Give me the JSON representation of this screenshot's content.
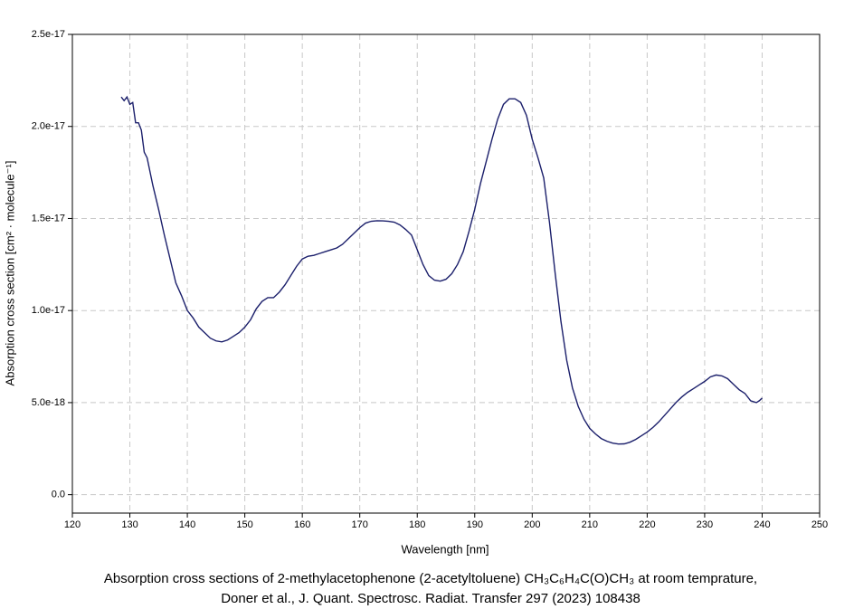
{
  "chart_data": {
    "type": "line",
    "x_label": "Wavelength [nm]",
    "y_label": "Absorption cross section [cm² · molecule⁻¹]",
    "caption_line1": "Absorption cross sections of 2-methylacetophenone (2-acetyltoluene) CH₃C₆H₄C(O)CH₃ at room temprature,",
    "caption_line2": "Doner et al., J. Quant. Spectrosc. Radiat. Transfer 297 (2023) 108438",
    "xlim": [
      120,
      250
    ],
    "xticks": [
      120,
      130,
      140,
      150,
      160,
      170,
      180,
      190,
      200,
      210,
      220,
      230,
      240,
      250
    ],
    "ylim": [
      -1e-18,
      2.5e-17
    ],
    "yticks": [
      {
        "value": 0,
        "label": "0.0"
      },
      {
        "value": 5e-18,
        "label": "5.0e-18"
      },
      {
        "value": 1e-17,
        "label": "1.0e-17"
      },
      1.5e-17,
      {
        "value": 2e-17,
        "label": "2.0e-17"
      },
      2.5e-17
    ],
    "grid": true,
    "series": [
      {
        "color": "#1b1f6b",
        "x": [
          128.5,
          129,
          129.5,
          130,
          130.5,
          131,
          131.5,
          132,
          132.5,
          133,
          134,
          135,
          136,
          137,
          138,
          139,
          140,
          141,
          142,
          143,
          144,
          145,
          146,
          147,
          148,
          149,
          150,
          151,
          152,
          153,
          154,
          155,
          156,
          157,
          158,
          159,
          160,
          161,
          162,
          163,
          164,
          165,
          166,
          167,
          168,
          169,
          170,
          171,
          172,
          173,
          174,
          175,
          176,
          177,
          178,
          179,
          180,
          181,
          182,
          183,
          184,
          185,
          186,
          187,
          188,
          189,
          190,
          191,
          192,
          193,
          194,
          195,
          196,
          197,
          198,
          199,
          200,
          201,
          202,
          203,
          204,
          205,
          206,
          207,
          208,
          209,
          210,
          211,
          212,
          213,
          214,
          215,
          216,
          217,
          218,
          219,
          220,
          221,
          222,
          223,
          224,
          225,
          226,
          227,
          228,
          229,
          230,
          231,
          232,
          233,
          234,
          235,
          236,
          237,
          238,
          239,
          239.5,
          240
        ],
        "values": [
          2.16e-17,
          2.14e-17,
          2.16e-17,
          2.12e-17,
          2.13e-17,
          2.02e-17,
          2.02e-17,
          1.98e-17,
          1.86e-17,
          1.83e-17,
          1.68e-17,
          1.55e-17,
          1.41e-17,
          1.28e-17,
          1.15e-17,
          1.08e-17,
          1e-17,
          9.6e-18,
          9.1e-18,
          8.8e-18,
          8.5e-18,
          8.35e-18,
          8.3e-18,
          8.4e-18,
          8.6e-18,
          8.8e-18,
          9.1e-18,
          9.5e-18,
          1.01e-17,
          1.05e-17,
          1.07e-17,
          1.07e-17,
          1.1e-17,
          1.14e-17,
          1.19e-17,
          1.24e-17,
          1.28e-17,
          1.295e-17,
          1.3e-17,
          1.31e-17,
          1.32e-17,
          1.33e-17,
          1.34e-17,
          1.36e-17,
          1.39e-17,
          1.42e-17,
          1.45e-17,
          1.475e-17,
          1.485e-17,
          1.488e-17,
          1.487e-17,
          1.485e-17,
          1.48e-17,
          1.465e-17,
          1.44e-17,
          1.41e-17,
          1.33e-17,
          1.25e-17,
          1.19e-17,
          1.165e-17,
          1.16e-17,
          1.17e-17,
          1.2e-17,
          1.25e-17,
          1.32e-17,
          1.43e-17,
          1.55e-17,
          1.69e-17,
          1.81e-17,
          1.93e-17,
          2.04e-17,
          2.12e-17,
          2.15e-17,
          2.15e-17,
          2.13e-17,
          2.06e-17,
          1.93e-17,
          1.83e-17,
          1.72e-17,
          1.48e-17,
          1.2e-17,
          9.4e-18,
          7.3e-18,
          5.8e-18,
          4.8e-18,
          4.1e-18,
          3.6e-18,
          3.3e-18,
          3.05e-18,
          2.9e-18,
          2.8e-18,
          2.75e-18,
          2.76e-18,
          2.85e-18,
          3e-18,
          3.2e-18,
          3.4e-18,
          3.65e-18,
          3.95e-18,
          4.3e-18,
          4.65e-18,
          5e-18,
          5.3e-18,
          5.55e-18,
          5.75e-18,
          5.95e-18,
          6.15e-18,
          6.4e-18,
          6.5e-18,
          6.45e-18,
          6.3e-18,
          6e-18,
          5.7e-18,
          5.5e-18,
          5.1e-18,
          5e-18,
          5.1e-18,
          5.25e-18
        ]
      }
    ]
  }
}
